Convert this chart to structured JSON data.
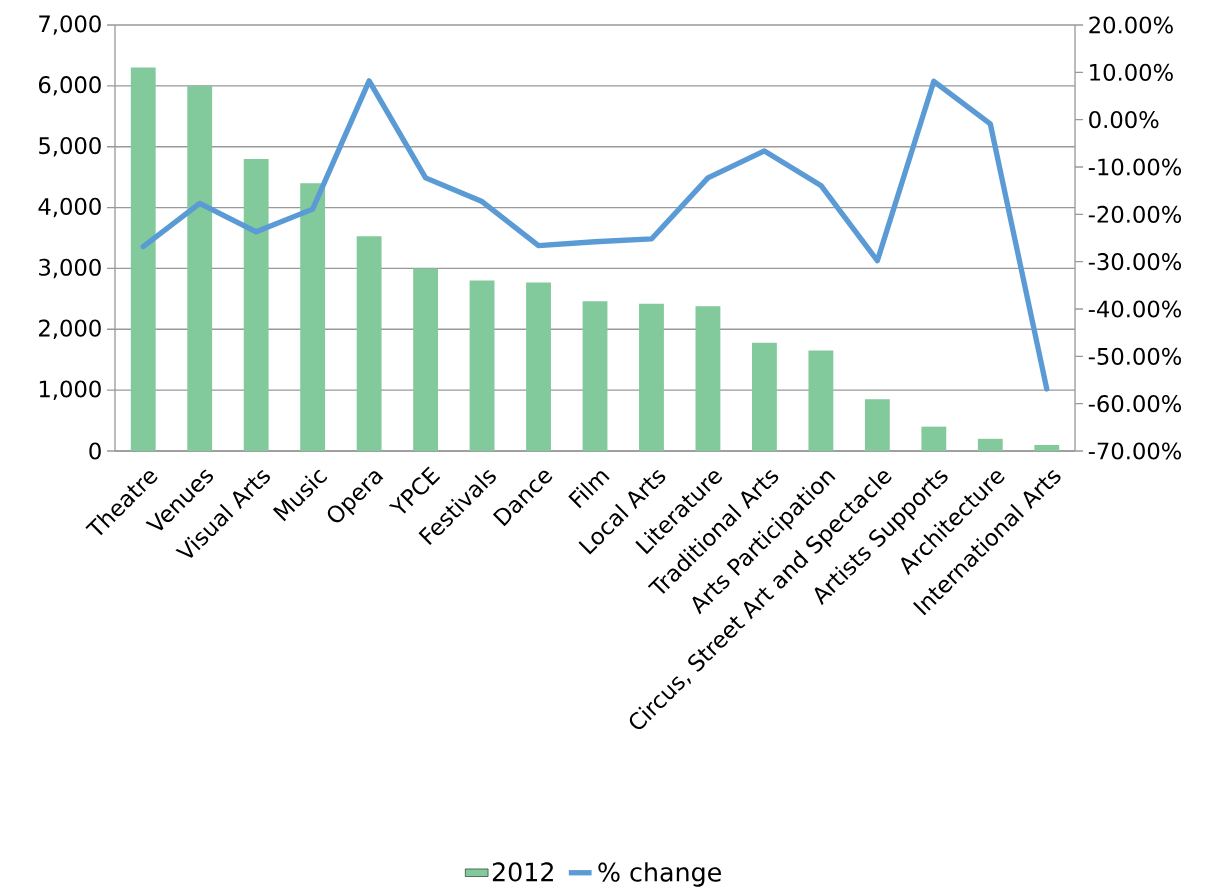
{
  "chart_data": {
    "type": "bar",
    "categories": [
      "Theatre",
      "Venues",
      "Visual Arts",
      "Music",
      "Opera",
      "YPCE",
      "Festivals",
      "Dance",
      "Film",
      "Local Arts",
      "Literature",
      "Traditional Arts",
      "Arts Participation",
      "Circus, Street Art and Spectacle",
      "Artists Supports",
      "Architecture",
      "International Arts"
    ],
    "series": [
      {
        "name": "2012",
        "color": "#82c99c",
        "values": [
          6300,
          6000,
          4800,
          4400,
          3530,
          3000,
          2800,
          2770,
          2460,
          2420,
          2380,
          1780,
          1650,
          850,
          400,
          200,
          100
        ]
      },
      {
        "name": "% change",
        "type": "line",
        "axis": "y2",
        "color": "#5b9bd5",
        "values": [
          -26.8,
          -17.7,
          -23.7,
          -18.9,
          8.2,
          -12.3,
          -17.3,
          -26.6,
          -25.8,
          -25.2,
          -12.3,
          -6.6,
          -13.9,
          -29.8,
          8.1,
          -0.9,
          -56.9
        ]
      }
    ],
    "ylim": [
      0,
      7000
    ],
    "yticks": [
      0,
      {
        "value": 1000,
        "label": "1,000"
      },
      {
        "value": 2000,
        "label": "2,000"
      },
      {
        "value": 3000,
        "label": "3,000"
      },
      {
        "value": 4000,
        "label": "4,000"
      },
      {
        "value": 5000,
        "label": "5,000"
      },
      {
        "value": 6000,
        "label": "6,000"
      },
      {
        "value": 7000,
        "label": "7,000"
      }
    ],
    "y2lim": [
      -70,
      20
    ],
    "y2ticks": [
      {
        "value": -70,
        "label": "-70.00%"
      },
      {
        "value": -60,
        "label": "-60.00%"
      },
      {
        "value": -50,
        "label": "-50.00%"
      },
      {
        "value": -40,
        "label": "-40.00%"
      },
      {
        "value": -30,
        "label": "-30.00%"
      },
      {
        "value": -20,
        "label": "-20.00%"
      },
      {
        "value": -10,
        "label": "-10.00%"
      },
      {
        "value": 0,
        "label": "0.00%"
      },
      {
        "value": 10,
        "label": "10.00%"
      },
      {
        "value": 20,
        "label": "20.00%"
      }
    ],
    "grid": "y",
    "legend": "bottom"
  }
}
